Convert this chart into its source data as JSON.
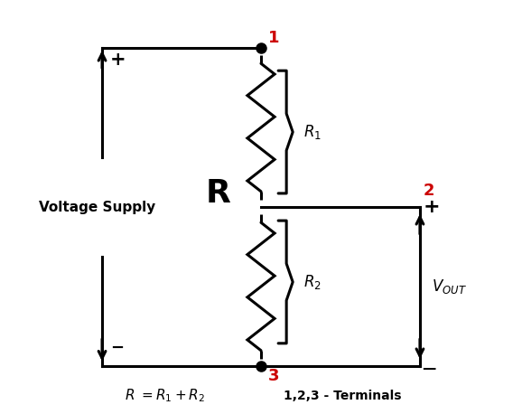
{
  "bg_color": "#ffffff",
  "line_color": "#000000",
  "red_color": "#cc0000",
  "figsize": [
    5.78,
    4.58
  ],
  "dpi": 100,
  "voltage_supply_label": "Voltage Supply",
  "node1_label": "1",
  "node2_label": "2",
  "node3_label": "3",
  "R_big_label": "R",
  "R1_label": "R_1",
  "R2_label": "R_2",
  "vout_label": "V_{OUT}",
  "formula": "R =R_1+R_2",
  "terminals": "1,2,3 - Terminals",
  "xlim": [
    0,
    10
  ],
  "ylim": [
    0,
    9
  ],
  "lw": 2.2
}
